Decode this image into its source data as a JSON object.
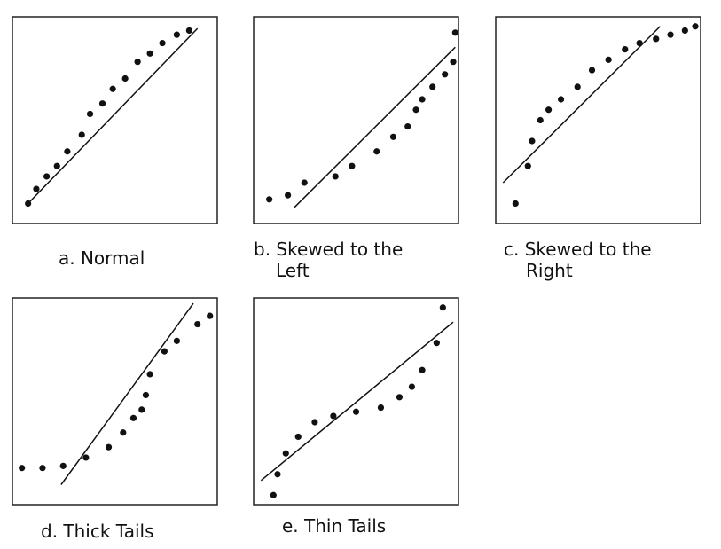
{
  "chart_data": [
    {
      "type": "scatter",
      "caption_lines": [
        "a. Normal"
      ],
      "points": [
        [
          0.08,
          0.1
        ],
        [
          0.12,
          0.17
        ],
        [
          0.17,
          0.23
        ],
        [
          0.22,
          0.28
        ],
        [
          0.27,
          0.35
        ],
        [
          0.34,
          0.43
        ],
        [
          0.38,
          0.53
        ],
        [
          0.44,
          0.58
        ],
        [
          0.49,
          0.65
        ],
        [
          0.55,
          0.7
        ],
        [
          0.61,
          0.78
        ],
        [
          0.67,
          0.82
        ],
        [
          0.73,
          0.87
        ],
        [
          0.8,
          0.91
        ],
        [
          0.86,
          0.93
        ]
      ],
      "fit_line": [
        [
          0.08,
          0.1
        ],
        [
          0.9,
          0.94
        ]
      ]
    },
    {
      "type": "scatter",
      "caption_lines": [
        "b. Skewed to the",
        "Left"
      ],
      "points": [
        [
          0.08,
          0.12
        ],
        [
          0.17,
          0.14
        ],
        [
          0.25,
          0.2
        ],
        [
          0.4,
          0.23
        ],
        [
          0.48,
          0.28
        ],
        [
          0.6,
          0.35
        ],
        [
          0.68,
          0.42
        ],
        [
          0.75,
          0.47
        ],
        [
          0.79,
          0.55
        ],
        [
          0.82,
          0.6
        ],
        [
          0.87,
          0.66
        ],
        [
          0.93,
          0.72
        ],
        [
          0.97,
          0.78
        ],
        [
          0.98,
          0.92
        ]
      ],
      "fit_line": [
        [
          0.2,
          0.08
        ],
        [
          0.98,
          0.85
        ]
      ]
    },
    {
      "type": "scatter",
      "caption_lines": [
        "c. Skewed to the",
        "Right"
      ],
      "points": [
        [
          0.1,
          0.1
        ],
        [
          0.16,
          0.28
        ],
        [
          0.18,
          0.4
        ],
        [
          0.22,
          0.5
        ],
        [
          0.26,
          0.55
        ],
        [
          0.32,
          0.6
        ],
        [
          0.4,
          0.66
        ],
        [
          0.47,
          0.74
        ],
        [
          0.55,
          0.79
        ],
        [
          0.63,
          0.84
        ],
        [
          0.7,
          0.87
        ],
        [
          0.78,
          0.89
        ],
        [
          0.85,
          0.91
        ],
        [
          0.92,
          0.93
        ],
        [
          0.97,
          0.95
        ]
      ],
      "fit_line": [
        [
          0.04,
          0.2
        ],
        [
          0.8,
          0.95
        ]
      ]
    },
    {
      "type": "scatter",
      "caption_lines": [
        "d. Thick Tails"
      ],
      "points": [
        [
          0.05,
          0.18
        ],
        [
          0.15,
          0.18
        ],
        [
          0.25,
          0.19
        ],
        [
          0.36,
          0.23
        ],
        [
          0.47,
          0.28
        ],
        [
          0.54,
          0.35
        ],
        [
          0.59,
          0.42
        ],
        [
          0.63,
          0.46
        ],
        [
          0.65,
          0.53
        ],
        [
          0.67,
          0.63
        ],
        [
          0.74,
          0.74
        ],
        [
          0.8,
          0.79
        ],
        [
          0.9,
          0.87
        ],
        [
          0.96,
          0.91
        ]
      ],
      "fit_line": [
        [
          0.24,
          0.1
        ],
        [
          0.88,
          0.97
        ]
      ]
    },
    {
      "type": "scatter",
      "caption_lines": [
        "e. Thin Tails"
      ],
      "points": [
        [
          0.1,
          0.05
        ],
        [
          0.12,
          0.15
        ],
        [
          0.16,
          0.25
        ],
        [
          0.22,
          0.33
        ],
        [
          0.3,
          0.4
        ],
        [
          0.39,
          0.43
        ],
        [
          0.5,
          0.45
        ],
        [
          0.62,
          0.47
        ],
        [
          0.71,
          0.52
        ],
        [
          0.77,
          0.57
        ],
        [
          0.82,
          0.65
        ],
        [
          0.89,
          0.78
        ],
        [
          0.92,
          0.95
        ]
      ],
      "fit_line": [
        [
          0.04,
          0.12
        ],
        [
          0.97,
          0.88
        ]
      ]
    }
  ]
}
